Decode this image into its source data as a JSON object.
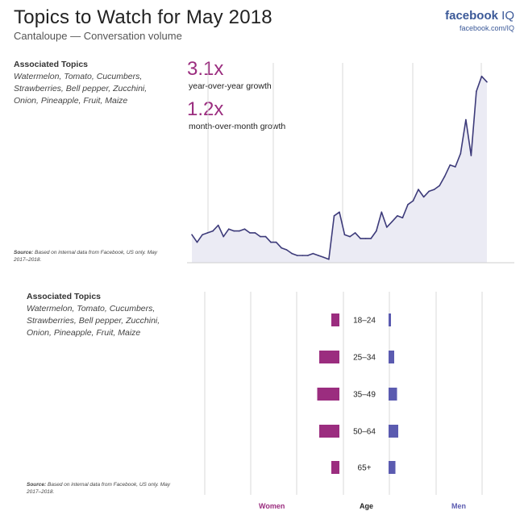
{
  "header": {
    "title": "Topics to Watch for May 2018",
    "subtitle": "Cantaloupe — Conversation volume",
    "brand": "facebook",
    "brand_suffix": "IQ",
    "brand_url": "facebook.com/IQ"
  },
  "panel_top": {
    "topics_heading": "Associated Topics",
    "topics_text": "Watermelon, Tomato, Cucumbers, Strawberries, Bell pepper, Zucchini, Onion, Pineapple, Fruit, Maize",
    "source_label": "Source:",
    "source_text": "Based on internal data from Facebook, US only. May 2017–2018.",
    "stat1_value": "3.1x",
    "stat1_label": "year-over-year growth",
    "stat2_value": "1.2x",
    "stat2_label": "month-over-month growth"
  },
  "panel_bottom": {
    "topics_heading": "Associated Topics",
    "topics_text": "Watermelon, Tomato, Cucumbers, Strawberries, Bell pepper, Zucchini, Onion, Pineapple, Fruit, Maize",
    "source_label": "Source:",
    "source_text": "Based on internal data from Facebook, US only. May 2017–2018."
  },
  "colors": {
    "line": "#3d3b7a",
    "area": "#ebebf4",
    "women": "#9b2d7f",
    "men": "#5b5bb0",
    "grid": "#d8d8d8"
  },
  "chart_data": [
    {
      "type": "area",
      "title": "",
      "xlabel": "",
      "ylabel": "",
      "x_range": [
        "May 2017",
        "May 2018"
      ],
      "ylim": [
        0,
        100
      ],
      "grid": true,
      "series": [
        {
          "values": [
            14,
            10,
            14,
            15,
            16,
            19,
            13,
            17,
            16,
            16,
            17,
            15,
            15,
            13,
            13,
            10,
            10,
            7,
            6,
            4,
            3,
            3,
            3,
            4,
            3,
            2,
            1,
            24,
            26,
            14,
            13,
            15,
            12,
            12,
            12,
            16,
            26,
            18,
            21,
            24,
            23,
            30,
            32,
            38,
            34,
            37,
            38,
            40,
            45,
            51,
            50,
            57,
            75,
            56,
            90,
            98,
            95
          ]
        }
      ]
    },
    {
      "type": "bar",
      "orientation": "horizontal-butterfly",
      "title": "",
      "categories": [
        "18–24",
        "25–34",
        "35–49",
        "50–64",
        "65+"
      ],
      "xlabel_left": "Women",
      "xlabel_center": "Age",
      "xlabel_right": "Men",
      "grid": true,
      "series": [
        {
          "name": "Women",
          "values": [
            2.0,
            5.0,
            5.5,
            5.0,
            2.0
          ]
        },
        {
          "name": "Men",
          "values": [
            0.6,
            1.4,
            2.1,
            2.4,
            1.7
          ]
        }
      ]
    }
  ]
}
